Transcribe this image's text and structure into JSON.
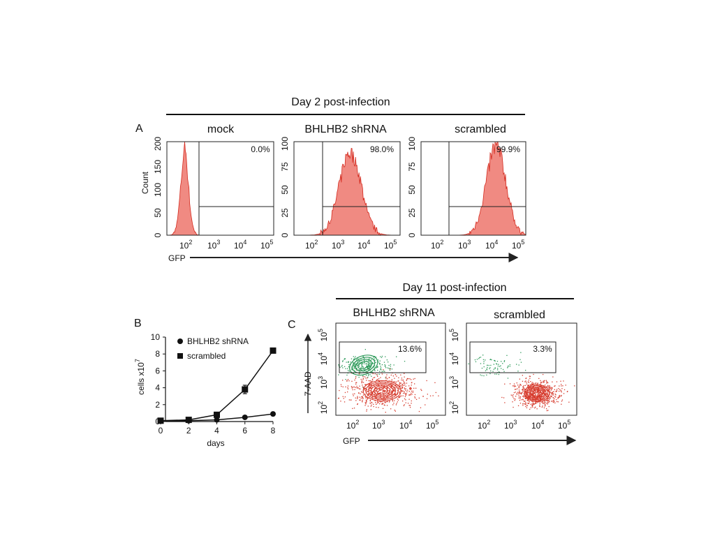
{
  "panel_a": {
    "letter": "A",
    "header": "Day 2 post-infection",
    "y_axis_label": "Count",
    "x_axis_label": "GFP",
    "colors": {
      "fill": "#f08a82",
      "line": "#d42a1e"
    },
    "panels": [
      {
        "title": "mock",
        "percent": "0.0%",
        "y_ticks": [
          "0",
          "50",
          "100",
          "150",
          "200"
        ],
        "x_ticks": [
          "10",
          "10",
          "10",
          "10"
        ],
        "x_exps": [
          "2",
          "3",
          "4",
          "5"
        ]
      },
      {
        "title": "BHLHB2 shRNA",
        "percent": "98.0%",
        "y_ticks": [
          "0",
          "25",
          "50",
          "75",
          "100"
        ],
        "x_ticks": [
          "10",
          "10",
          "10",
          "10"
        ],
        "x_exps": [
          "2",
          "3",
          "4",
          "5"
        ]
      },
      {
        "title": "scrambled",
        "percent": "99.9%",
        "y_ticks": [
          "0",
          "25",
          "50",
          "75",
          "100"
        ],
        "x_ticks": [
          "10",
          "10",
          "10",
          "10"
        ],
        "x_exps": [
          "2",
          "3",
          "4",
          "5"
        ]
      }
    ]
  },
  "panel_b": {
    "letter": "B",
    "y_axis_label": "cells x10",
    "y_axis_exp": "7",
    "x_axis_label": "days",
    "legend": [
      "BHLHB2 shRNA",
      "scrambled"
    ],
    "x_ticks": [
      "0",
      "2",
      "4",
      "6",
      "8"
    ],
    "y_ticks": [
      "0",
      "2",
      "4",
      "6",
      "8",
      "10"
    ]
  },
  "panel_c": {
    "letter": "C",
    "header": "Day 11 post-infection",
    "y_axis_label": "7-AAD",
    "x_axis_label": "GFP",
    "colors": {
      "green": "#2e9a5a",
      "red": "#d63a2c"
    },
    "panels": [
      {
        "title": "BHLHB2 shRNA",
        "percent": "13.6%"
      },
      {
        "title": "scrambled",
        "percent": "3.3%"
      }
    ],
    "tick_base": "10",
    "x_exps": [
      "2",
      "3",
      "4",
      "5"
    ],
    "y_exps": [
      "2",
      "3",
      "4",
      "5"
    ]
  },
  "chart_data": [
    {
      "type": "histogram",
      "panel": "A-mock",
      "title": "mock",
      "xlabel": "GFP",
      "ylabel": "Count",
      "ylim": [
        0,
        200
      ],
      "x_scale": "log",
      "gate_percent": 0.0,
      "peak_log10_gfp": 1.95,
      "peak_count": 190
    },
    {
      "type": "histogram",
      "panel": "A-BHLHB2",
      "title": "BHLHB2 shRNA",
      "xlabel": "GFP",
      "ylabel": "Count",
      "ylim": [
        0,
        100
      ],
      "x_scale": "log",
      "gate_percent": 98.0,
      "peak_log10_gfp": 3.4,
      "peak_count": 88
    },
    {
      "type": "histogram",
      "panel": "A-scrambled",
      "title": "scrambled",
      "xlabel": "GFP",
      "ylabel": "Count",
      "ylim": [
        0,
        100
      ],
      "x_scale": "log",
      "gate_percent": 99.9,
      "peak_log10_gfp": 4.15,
      "peak_count": 95
    },
    {
      "type": "line",
      "panel": "B",
      "xlabel": "days",
      "ylabel": "cells x10^7",
      "xlim": [
        0,
        8
      ],
      "ylim": [
        0,
        10
      ],
      "x": [
        0,
        2,
        4,
        6,
        8
      ],
      "series": [
        {
          "name": "BHLHB2 shRNA",
          "marker": "circle",
          "values": [
            0.1,
            0.1,
            0.2,
            0.5,
            0.9
          ]
        },
        {
          "name": "scrambled",
          "marker": "square",
          "values": [
            0.1,
            0.2,
            0.8,
            3.8,
            8.4
          ],
          "errors": [
            0,
            0,
            0.2,
            0.5,
            0.2
          ]
        }
      ]
    },
    {
      "type": "scatter",
      "panel": "C-BHLHB2",
      "title": "BHLHB2 shRNA",
      "xlabel": "GFP",
      "ylabel": "7-AAD",
      "x_scale": "log",
      "y_scale": "log",
      "gate_percent": 13.6,
      "populations": [
        {
          "name": "7-AAD+ (gated)",
          "color": "green",
          "center_log10": [
            2.3,
            3.6
          ]
        },
        {
          "name": "7-AAD-",
          "color": "red",
          "center_log10": [
            3.0,
            2.5
          ]
        }
      ]
    },
    {
      "type": "scatter",
      "panel": "C-scrambled",
      "title": "scrambled",
      "xlabel": "GFP",
      "ylabel": "7-AAD",
      "x_scale": "log",
      "y_scale": "log",
      "gate_percent": 3.3,
      "populations": [
        {
          "name": "7-AAD+ (gated)",
          "color": "green",
          "center_log10": [
            2.3,
            3.6
          ]
        },
        {
          "name": "7-AAD-",
          "color": "red",
          "center_log10": [
            3.9,
            2.4
          ]
        }
      ]
    }
  ]
}
